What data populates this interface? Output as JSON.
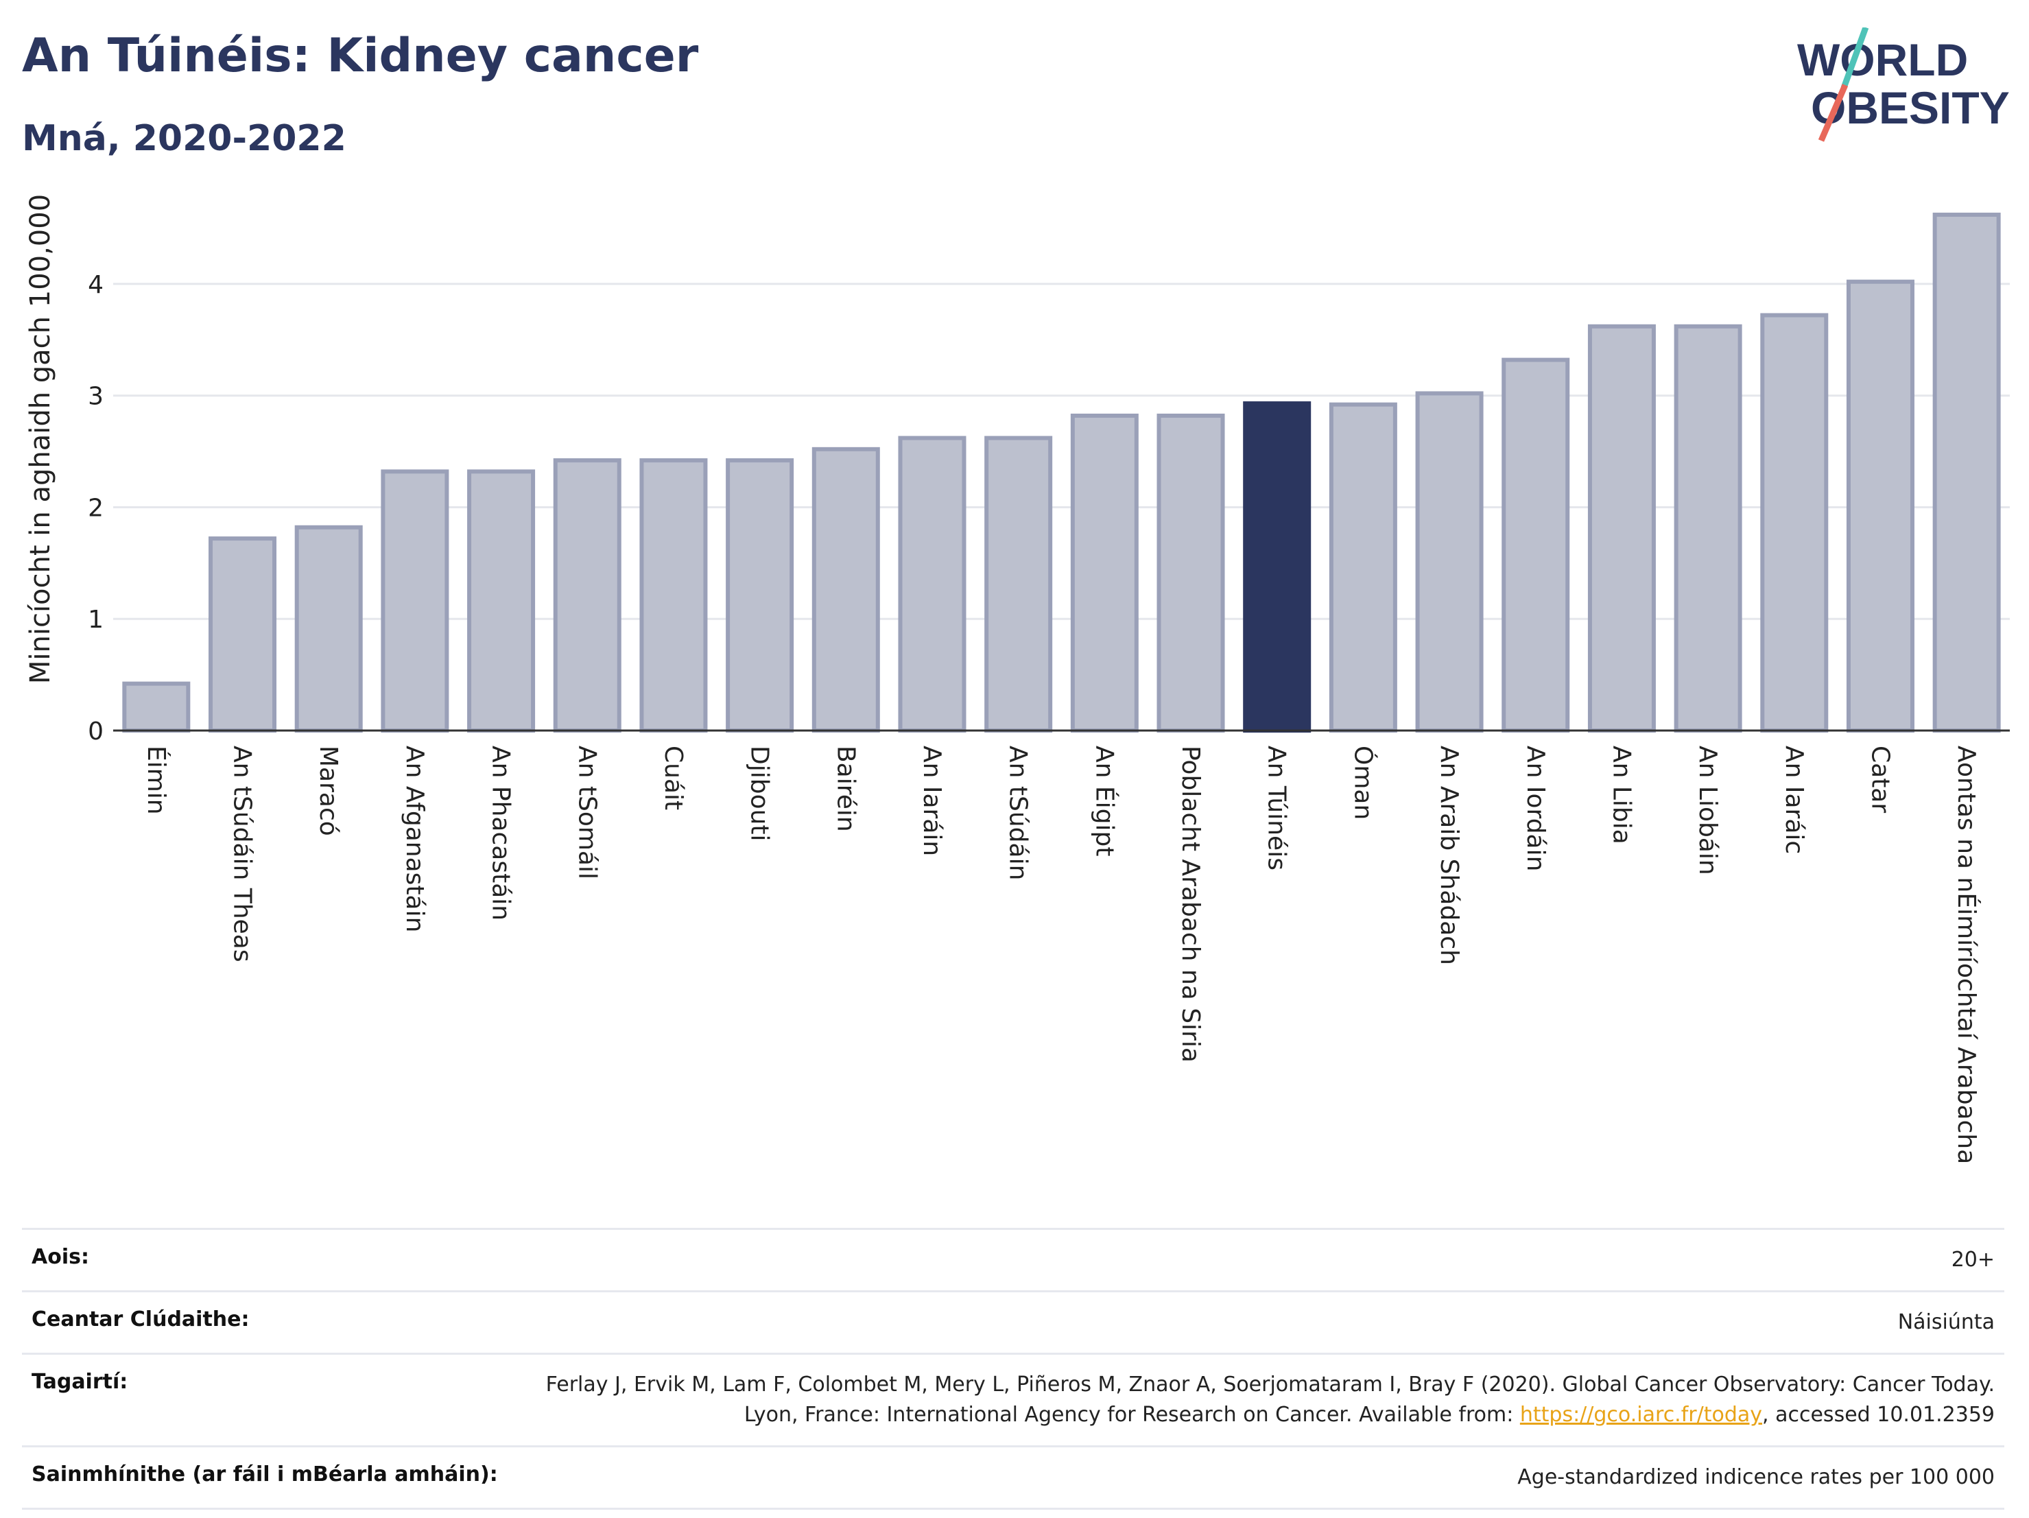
{
  "header": {
    "title": "An Túinéis: Kidney cancer",
    "subtitle": "Mná, 2020-2022"
  },
  "logo": {
    "line1": "WORLD",
    "line2": "OBESITY",
    "slash_colors": [
      "#4fc3b8",
      "#e8685a"
    ],
    "text_color": "#2b365f"
  },
  "chart_data": {
    "type": "bar",
    "ylabel": "Minicíocht in aghaidh gach 100,000",
    "ylim": [
      0,
      4.7
    ],
    "yticks": [
      0,
      1,
      2,
      3,
      4
    ],
    "grid": true,
    "highlight": "An Túinéis",
    "colors": {
      "bar": "#bcc0ce",
      "bar_edge": "#9aa0b8",
      "highlight": "#2b365f"
    },
    "categories": [
      "Éimin",
      "An tSúdáin Theas",
      "Maracó",
      "An Afganastáin",
      "An Phacastáin",
      "An tSomáil",
      "Cuáit",
      "Djibouti",
      "Bairéin",
      "An Iaráin",
      "An tSúdáin",
      "An Éigipt",
      "Poblacht Arabach na Siria",
      "An Túinéis",
      "Óman",
      "An Araib Shádach",
      "An Iordáin",
      "An Libia",
      "An Liobáin",
      "An Iaráic",
      "Catar",
      "Aontas na nÉimíríochtaí Arabacha"
    ],
    "values": [
      0.42,
      1.72,
      1.82,
      2.32,
      2.32,
      2.42,
      2.42,
      2.42,
      2.52,
      2.62,
      2.62,
      2.82,
      2.82,
      2.93,
      2.92,
      3.02,
      3.32,
      3.62,
      3.62,
      3.72,
      4.02,
      4.62
    ]
  },
  "meta": {
    "age_label": "Aois:",
    "age_value": "20+",
    "area_label": "Ceantar Clúdaithe:",
    "area_value": "Náisiúnta",
    "ref_label": "Tagairtí:",
    "ref_text_1": "Ferlay J, Ervik M, Lam F, Colombet M, Mery L, Piñeros M, Znaor A, Soerjomataram I, Bray F (2020). Global Cancer Observatory: Cancer Today. Lyon, France: International Agency for Research on Cancer. Available from: ",
    "ref_link": "https://gco.iarc.fr/today",
    "ref_text_2": ", accessed 10.01.2359",
    "def_label": "Sainmhínithe (ar fáil i mBéarla amháin):",
    "def_value": "Age-standardized indicence rates per 100 000"
  }
}
